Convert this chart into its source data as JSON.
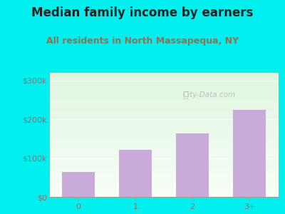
{
  "title": "Median family income by earners",
  "subtitle": "All residents in North Massapequa, NY",
  "categories": [
    "0",
    "1",
    "2",
    "3+"
  ],
  "values": [
    65000,
    122000,
    163000,
    225000
  ],
  "bar_color": "#c9aad8",
  "yticks": [
    0,
    100000,
    200000,
    300000
  ],
  "ytick_labels": [
    "$0",
    "$100k",
    "$200k",
    "$300k"
  ],
  "ylim": [
    0,
    320000
  ],
  "outer_bg": "#00f0f0",
  "title_color": "#222222",
  "subtitle_color": "#8B7355",
  "tick_color": "#777777",
  "watermark": "City-Data.com",
  "title_fontsize": 12,
  "subtitle_fontsize": 9,
  "tick_fontsize": 8
}
